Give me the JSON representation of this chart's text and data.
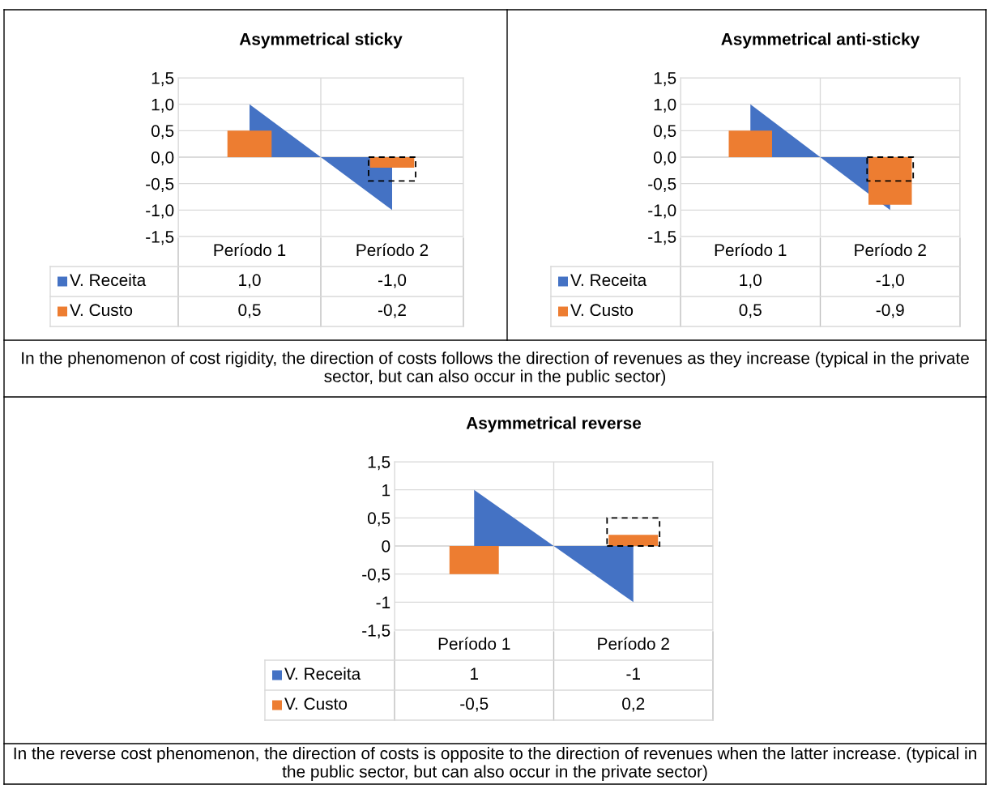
{
  "chart_data": [
    {
      "type": "bar",
      "title": "Asymmetrical sticky",
      "categories": [
        "Período 1",
        "Período 2"
      ],
      "ylim": [
        -1.5,
        1.5
      ],
      "yticks": [
        {
          "value": 1.5,
          "label": "1,5"
        },
        {
          "value": 1.0,
          "label": "1,0"
        },
        {
          "value": 0.5,
          "label": "0,5"
        },
        {
          "value": 0.0,
          "label": "0,0"
        },
        {
          "value": -0.5,
          "label": "-0,5"
        },
        {
          "value": -1.0,
          "label": "-1,0"
        },
        {
          "value": -1.5,
          "label": "-1,5"
        }
      ],
      "grid": true,
      "legend": "bottom",
      "series": [
        {
          "name": "V. Receita",
          "color": "#4472c4",
          "type": "area",
          "values": [
            1.0,
            -1.0
          ],
          "value_labels": [
            "1,0",
            "-1,0"
          ]
        },
        {
          "name": "V. Custo",
          "color": "#ed7d31",
          "values": [
            0.5,
            -0.2
          ],
          "value_labels": [
            "0,5",
            "-0,2"
          ]
        },
        {
          "color": "#000000",
          "line_style": "dashed",
          "values": [
            null,
            -0.45
          ]
        }
      ],
      "annotations": [
        "In the phenomenon of cost rigidity, the direction of costs follows the direction of revenues as they increase (typical in the private sector, but can also occur in the public sector)"
      ]
    },
    {
      "type": "bar",
      "title": "Asymmetrical anti-sticky",
      "categories": [
        "Período 1",
        "Período 2"
      ],
      "ylim": [
        -1.5,
        1.5
      ],
      "yticks": [
        {
          "value": 1.5,
          "label": "1,5"
        },
        {
          "value": 1.0,
          "label": "1,0"
        },
        {
          "value": 0.5,
          "label": "0,5"
        },
        {
          "value": 0.0,
          "label": "0,0"
        },
        {
          "value": -0.5,
          "label": "-0,5"
        },
        {
          "value": -1.0,
          "label": "-1,0"
        },
        {
          "value": -1.5,
          "label": "-1,5"
        }
      ],
      "grid": true,
      "legend": "bottom",
      "series": [
        {
          "name": "V. Receita",
          "color": "#4472c4",
          "type": "area",
          "values": [
            1.0,
            -1.0
          ],
          "value_labels": [
            "1,0",
            "-1,0"
          ]
        },
        {
          "name": "V. Custo",
          "color": "#ed7d31",
          "values": [
            0.5,
            -0.9
          ],
          "value_labels": [
            "0,5",
            "-0,9"
          ]
        },
        {
          "color": "#000000",
          "line_style": "dashed",
          "values": [
            null,
            -0.45
          ]
        }
      ]
    },
    {
      "type": "bar",
      "title": "Asymmetrical reverse",
      "categories": [
        "Período 1",
        "Período 2"
      ],
      "ylim": [
        -1.5,
        1.5
      ],
      "yticks": [
        {
          "value": 1.5,
          "label": "1,5"
        },
        1,
        {
          "value": 0.5,
          "label": "0,5"
        },
        0,
        {
          "value": -0.5,
          "label": "-0,5"
        },
        -1,
        {
          "value": -1.5,
          "label": "-1,5"
        }
      ],
      "grid": true,
      "legend": "bottom",
      "series": [
        {
          "name": "V. Receita",
          "color": "#4472c4",
          "type": "area",
          "values": [
            1,
            -1
          ],
          "value_labels": [
            "1",
            "-1"
          ]
        },
        {
          "name": "V. Custo",
          "color": "#ed7d31",
          "values": [
            -0.5,
            0.2
          ],
          "value_labels": [
            "-0,5",
            "0,2"
          ]
        },
        {
          "color": "#000000",
          "line_style": "dashed",
          "values": [
            null,
            0.5
          ]
        }
      ],
      "annotations": [
        "In the reverse cost phenomenon, the direction of costs is opposite to the direction of revenues when the latter increase. (typical in the public sector, but can also occur in the private sector)"
      ]
    }
  ]
}
